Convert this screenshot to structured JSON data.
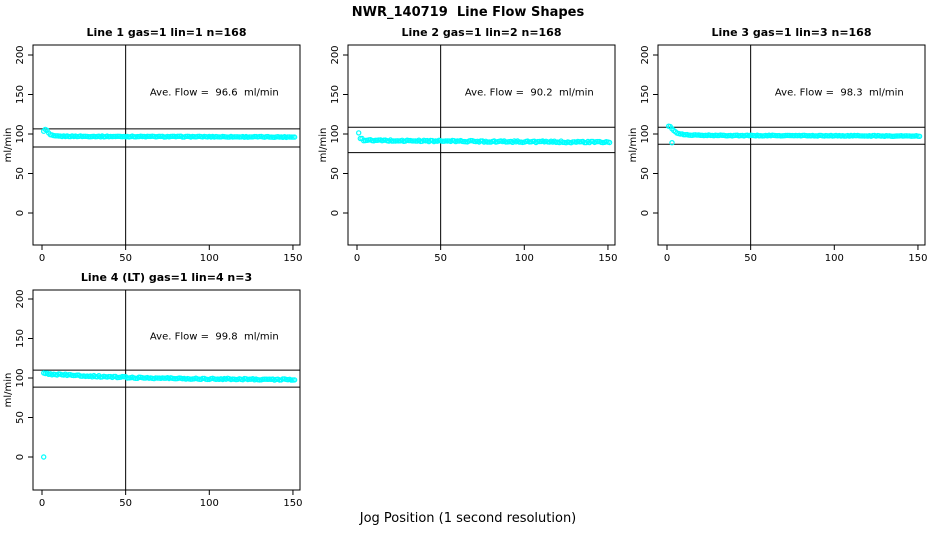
{
  "title": "NWR_140719  Line Flow Shapes",
  "xlabel": "Jog Position (1 second resolution)",
  "chart_data": {
    "type": "scatter",
    "title": "NWR_140719  Line Flow Shapes",
    "xlabel": "Jog Position (1 second resolution)",
    "ylabel": "ml/min",
    "x_ticks": [
      0,
      50,
      100,
      150
    ],
    "y_ticks": [
      0,
      50,
      100,
      150,
      200
    ],
    "xlim": [
      -5,
      156
    ],
    "ylim": [
      -40,
      212
    ],
    "grid": false,
    "marker_color": "#00FFFF",
    "line_color": "#000000",
    "vline_x": 50,
    "panels": [
      {
        "title": "Line 1 gas=1 lin=1 n=168",
        "annotation": "Ave. Flow =  96.6  ml/min",
        "ave_flow_ml_min": 96.6,
        "n": 168,
        "upper_line": 106.5,
        "lower_line": 83.5,
        "x_start": 1,
        "x_end": 151,
        "noise_amp": 0.5,
        "series_anchors": [
          [
            1,
            104
          ],
          [
            2,
            105.5
          ],
          [
            3,
            104.5
          ],
          [
            4,
            101
          ],
          [
            5,
            99
          ],
          [
            7,
            97.5
          ],
          [
            10,
            97.2
          ],
          [
            30,
            97
          ],
          [
            60,
            96.8
          ],
          [
            100,
            96.6
          ],
          [
            151,
            96.2
          ]
        ],
        "outliers": []
      },
      {
        "title": "Line 2 gas=1 lin=2 n=168",
        "annotation": "Ave. Flow =  90.2  ml/min",
        "ave_flow_ml_min": 90.2,
        "n": 168,
        "upper_line": 108.5,
        "lower_line": 76.5,
        "x_start": 1,
        "x_end": 151,
        "noise_amp": 1.0,
        "series_anchors": [
          [
            1,
            100.5
          ],
          [
            2,
            95
          ],
          [
            3,
            93.5
          ],
          [
            4,
            92.5
          ],
          [
            6,
            92
          ],
          [
            10,
            91.8
          ],
          [
            40,
            91.3
          ],
          [
            80,
            90.6
          ],
          [
            120,
            90
          ],
          [
            151,
            89.6
          ]
        ],
        "outliers": []
      },
      {
        "title": "Line 3 gas=1 lin=3 n=168",
        "annotation": "Ave. Flow =  98.3  ml/min",
        "ave_flow_ml_min": 98.3,
        "n": 168,
        "upper_line": 108.5,
        "lower_line": 87,
        "x_start": 1,
        "x_end": 151,
        "noise_amp": 0.5,
        "series_anchors": [
          [
            1,
            110
          ],
          [
            2,
            109
          ],
          [
            3,
            107
          ],
          [
            4,
            104.5
          ],
          [
            5,
            102.5
          ],
          [
            7,
            100.5
          ],
          [
            10,
            99.3
          ],
          [
            15,
            98.6
          ],
          [
            25,
            98.2
          ],
          [
            60,
            98
          ],
          [
            100,
            97.8
          ],
          [
            151,
            97.4
          ]
        ],
        "outliers": [
          [
            3,
            89
          ]
        ]
      },
      {
        "title": "Line 4 (LT) gas=1 lin=4 n=3",
        "annotation": "Ave. Flow =  99.8  ml/min",
        "ave_flow_ml_min": 99.8,
        "n": 3,
        "upper_line": 110,
        "lower_line": 88.5,
        "x_start": 1,
        "x_end": 151,
        "noise_amp": 0.9,
        "series_anchors": [
          [
            1,
            105.8
          ],
          [
            5,
            105
          ],
          [
            15,
            103.8
          ],
          [
            25,
            102.8
          ],
          [
            40,
            101.5
          ],
          [
            55,
            100.5
          ],
          [
            70,
            99.8
          ],
          [
            90,
            99.2
          ],
          [
            110,
            98.8
          ],
          [
            130,
            98.4
          ],
          [
            151,
            97.8
          ]
        ],
        "outliers": [
          [
            1,
            0
          ]
        ]
      }
    ]
  }
}
